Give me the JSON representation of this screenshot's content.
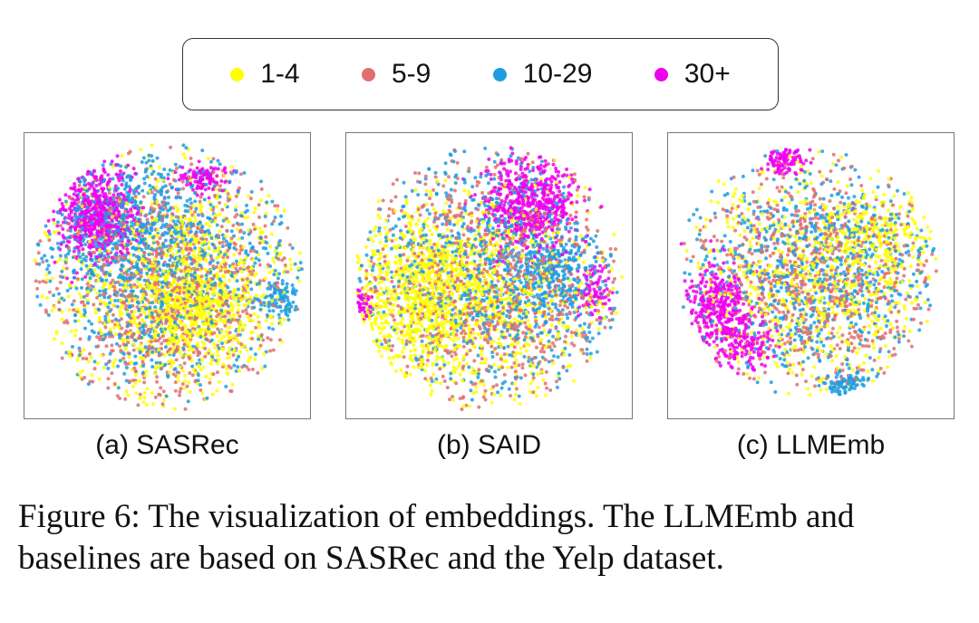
{
  "legend": {
    "items": [
      {
        "label": "1-4",
        "color": "#ffff00"
      },
      {
        "label": "5-9",
        "color": "#e07070"
      },
      {
        "label": "10-29",
        "color": "#1f9de0"
      },
      {
        "label": "30+",
        "color": "#ee00ee"
      }
    ]
  },
  "chart_data": [
    {
      "type": "scatter",
      "title": "(a) SASRec",
      "description_clusters": [
        {
          "group": "30+",
          "region": "upper-left",
          "density": "high"
        },
        {
          "group": "30+",
          "region": "top-right",
          "density": "low"
        },
        {
          "group": "1-4",
          "region": "center-right",
          "density": "high"
        },
        {
          "group": "10-29",
          "region": "upper",
          "density": "medium"
        }
      ]
    },
    {
      "type": "scatter",
      "title": "(b) SAID",
      "description_clusters": [
        {
          "group": "30+",
          "region": "upper-right",
          "density": "high"
        },
        {
          "group": "1-4",
          "region": "left-center",
          "density": "high"
        },
        {
          "group": "10-29",
          "region": "center",
          "density": "medium"
        }
      ]
    },
    {
      "type": "scatter",
      "title": "(c) LLMEmb",
      "description_clusters": [
        {
          "group": "30+",
          "region": "left",
          "density": "medium"
        },
        {
          "group": "30+",
          "region": "top-center",
          "density": "low"
        },
        {
          "group": "mixed",
          "region": "spread",
          "density": "uniform"
        }
      ]
    }
  ],
  "panels": {
    "a_label": "(a) SASRec",
    "b_label": "(b) SAID",
    "c_label": "(c) LLMEmb"
  },
  "caption": {
    "text": "Figure 6: The visualization of embeddings. The LLMEmb and baselines are based on SASRec and the Yelp dataset."
  }
}
